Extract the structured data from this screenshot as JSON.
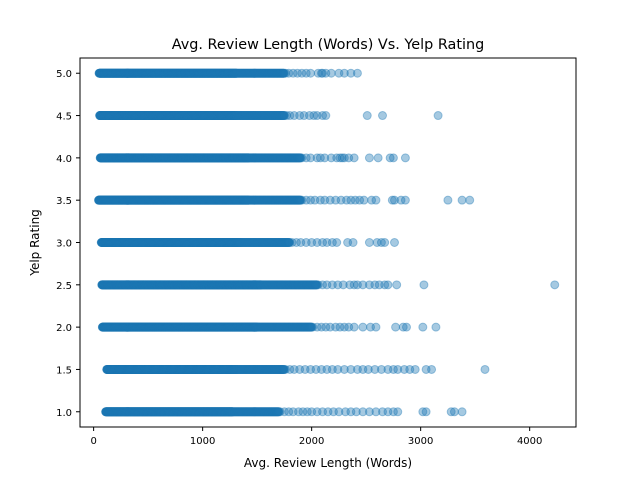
{
  "chart_data": {
    "type": "scatter",
    "title": "Avg. Review Length (Words) Vs. Yelp Rating",
    "xlabel": "Avg. Review Length (Words)",
    "ylabel": "Yelp Rating",
    "xlim": [
      -125,
      4425
    ],
    "ylim": [
      0.82,
      5.18
    ],
    "xticks": [
      0,
      1000,
      2000,
      3000,
      4000
    ],
    "xtick_labels": [
      "0",
      "1000",
      "2000",
      "3000",
      "4000"
    ],
    "yticks": [
      1.0,
      1.5,
      2.0,
      2.5,
      3.0,
      3.5,
      4.0,
      4.5,
      5.0
    ],
    "ytick_labels": [
      "1.0",
      "1.5",
      "2.0",
      "2.5",
      "3.0",
      "3.5",
      "4.0",
      "4.5",
      "5.0"
    ],
    "grid": false,
    "marker_color": "#1f77b4",
    "marker_alpha": 0.4,
    "rows": [
      {
        "y": 5.0,
        "dense_from": 50,
        "dense_to": 1750,
        "outliers_x": [
          1760,
          1790,
          1830,
          1870,
          1910,
          1950,
          1990,
          2060,
          2090,
          2100,
          2130,
          2180,
          2250,
          2300,
          2360,
          2420
        ]
      },
      {
        "y": 4.5,
        "dense_from": 55,
        "dense_to": 1750,
        "outliers_x": [
          1770,
          1800,
          1840,
          1890,
          1930,
          1980,
          2020,
          2050,
          2100,
          2130,
          2510,
          2650,
          3160
        ]
      },
      {
        "y": 4.0,
        "dense_from": 60,
        "dense_to": 1900,
        "outliers_x": [
          1910,
          1950,
          1990,
          2050,
          2080,
          2120,
          2180,
          2230,
          2260,
          2280,
          2300,
          2340,
          2390,
          2530,
          2610,
          2720,
          2750,
          2860
        ]
      },
      {
        "y": 3.5,
        "dense_from": 45,
        "dense_to": 1900,
        "outliers_x": [
          1910,
          1950,
          1990,
          2030,
          2080,
          2120,
          2170,
          2220,
          2270,
          2320,
          2360,
          2400,
          2440,
          2480,
          2550,
          2590,
          2740,
          2760,
          2820,
          2860,
          3250,
          3380,
          3450
        ]
      },
      {
        "y": 3.0,
        "dense_from": 70,
        "dense_to": 1800,
        "outliers_x": [
          1820,
          1860,
          1900,
          1950,
          2000,
          2050,
          2100,
          2140,
          2190,
          2230,
          2330,
          2380,
          2530,
          2600,
          2640,
          2670,
          2760
        ]
      },
      {
        "y": 2.5,
        "dense_from": 75,
        "dense_to": 2050,
        "outliers_x": [
          2060,
          2100,
          2140,
          2190,
          2240,
          2290,
          2350,
          2390,
          2420,
          2470,
          2530,
          2580,
          2620,
          2670,
          2700,
          2780,
          3030,
          4230
        ]
      },
      {
        "y": 2.0,
        "dense_from": 80,
        "dense_to": 2000,
        "outliers_x": [
          2010,
          2050,
          2090,
          2130,
          2170,
          2220,
          2260,
          2300,
          2340,
          2390,
          2470,
          2540,
          2590,
          2770,
          2840,
          2870,
          3020,
          3140
        ]
      },
      {
        "y": 1.5,
        "dense_from": 120,
        "dense_to": 1750,
        "outliers_x": [
          1760,
          1800,
          1840,
          1890,
          1940,
          1990,
          2040,
          2090,
          2140,
          2190,
          2240,
          2300,
          2360,
          2420,
          2470,
          2520,
          2580,
          2640,
          2700,
          2750,
          2790,
          2850,
          2900,
          2950,
          3050,
          3100,
          3590
        ]
      },
      {
        "y": 1.0,
        "dense_from": 110,
        "dense_to": 1700,
        "outliers_x": [
          1710,
          1750,
          1790,
          1830,
          1880,
          1920,
          1960,
          2000,
          2050,
          2100,
          2150,
          2200,
          2250,
          2310,
          2360,
          2410,
          2470,
          2530,
          2590,
          2650,
          2700,
          2750,
          2790,
          3020,
          3050,
          3280,
          3310,
          3380
        ]
      }
    ]
  }
}
